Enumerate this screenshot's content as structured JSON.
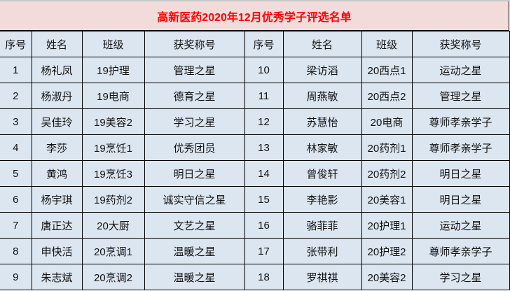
{
  "title": "高新医药2020年12月优秀学子评选名单",
  "colors": {
    "title_bg": "#f2dcdb",
    "title_text": "#ff0000",
    "table_bg": "#dce6f1"
  },
  "headers": [
    "序号",
    "姓名",
    "班级",
    "获奖称号",
    "序号",
    "姓名",
    "班级",
    "获奖称号"
  ],
  "rows": [
    [
      "1",
      "杨礼凤",
      "19护理",
      "管理之星",
      "10",
      "梁访滔",
      "20西点1",
      "运动之星"
    ],
    [
      "2",
      "杨淑丹",
      "19电商",
      "德育之星",
      "11",
      "周燕敏",
      "20西点2",
      "管理之星"
    ],
    [
      "3",
      "吴佳玲",
      "19美容2",
      "学习之星",
      "12",
      "苏慧怡",
      "20电商",
      "尊师孝亲学子"
    ],
    [
      "4",
      "李莎",
      "19烹饪1",
      "优秀团员",
      "13",
      "林家敏",
      "20药剂1",
      "尊师孝亲学子"
    ],
    [
      "5",
      "黄鸿",
      "19烹饪3",
      "明日之星",
      "14",
      "曾俊轩",
      "20药剂2",
      "明日之星"
    ],
    [
      "6",
      "杨宇琪",
      "19药剂2",
      "诚实守信之星",
      "15",
      "李艳影",
      "20美容1",
      "明日之星"
    ],
    [
      "7",
      "唐正达",
      "20大厨",
      "文艺之星",
      "16",
      "骆菲菲",
      "20护理1",
      "运动之星"
    ],
    [
      "8",
      "申快活",
      "20烹调1",
      "温暖之星",
      "17",
      "张带利",
      "20护理2",
      "尊师孝亲学子"
    ],
    [
      "9",
      "朱志斌",
      "20烹调2",
      "温暖之星",
      "18",
      "罗祺祺",
      "20美容2",
      "学习之星"
    ]
  ]
}
